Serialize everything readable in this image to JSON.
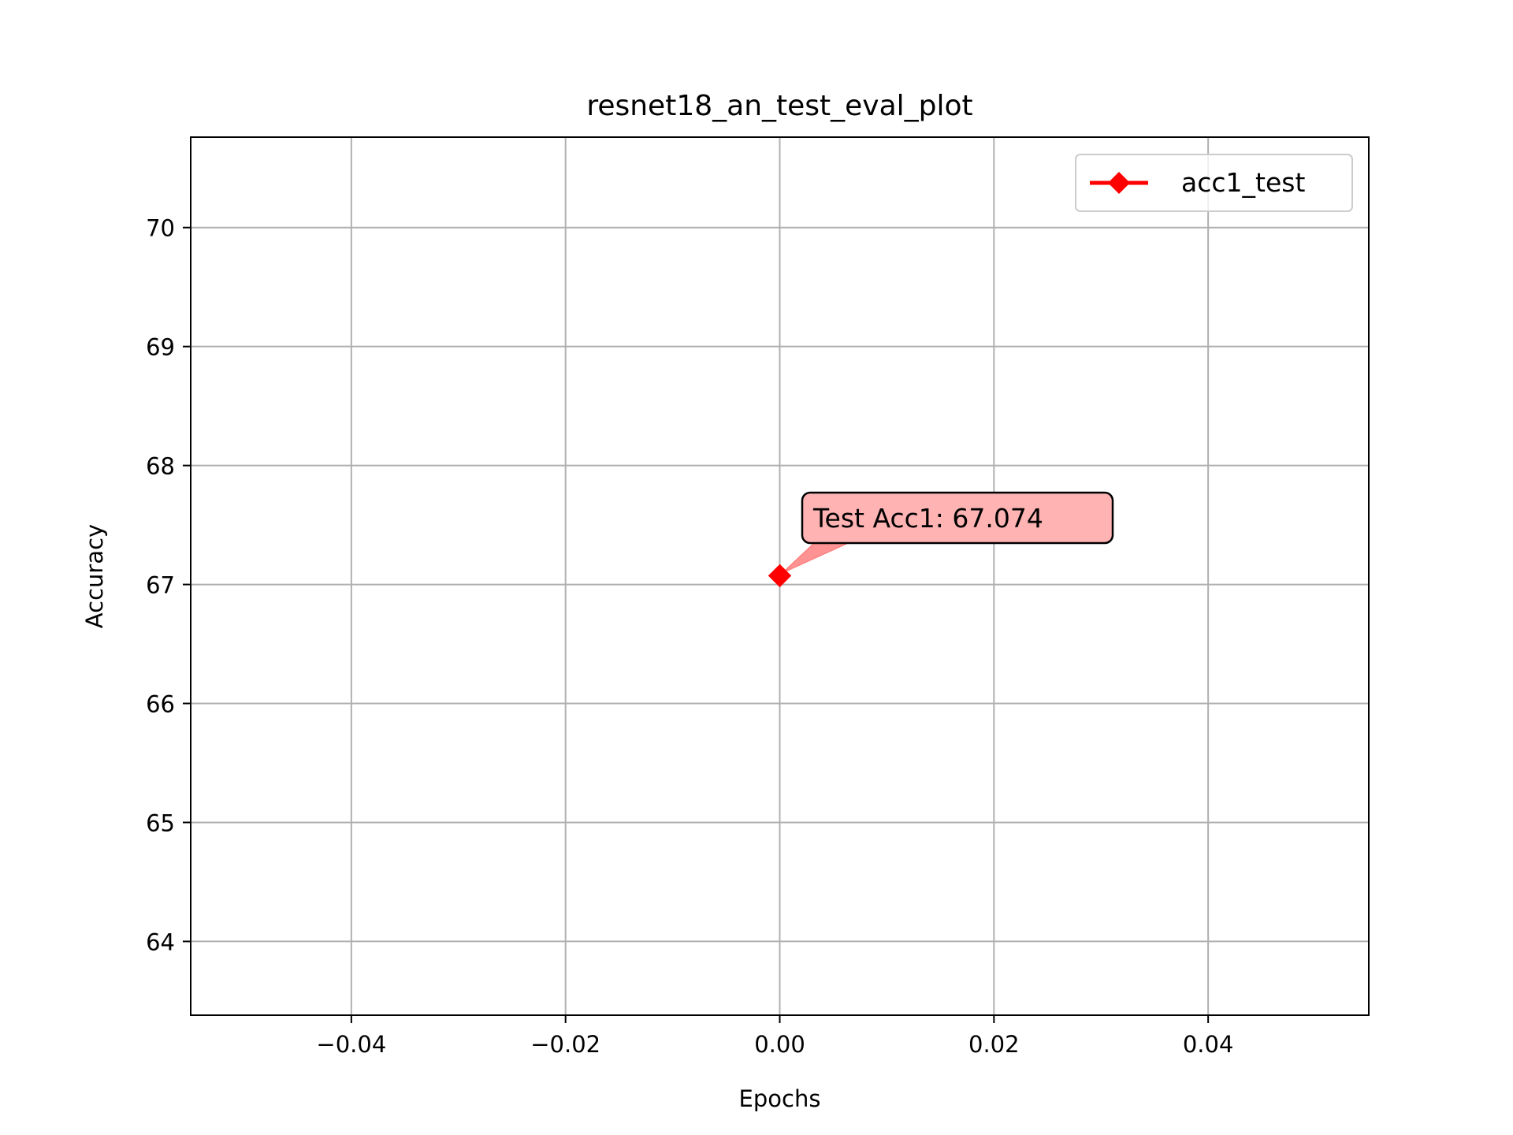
{
  "chart_data": {
    "type": "line",
    "title": "resnet18_an_test_eval_plot",
    "xlabel": "Epochs",
    "ylabel": "Accuracy",
    "xlim": [
      -0.055,
      0.055
    ],
    "ylim": [
      63.38,
      70.76
    ],
    "grid": true,
    "legend_position": "top-right",
    "x_ticks": [
      -0.04,
      -0.02,
      0.0,
      0.02,
      0.04
    ],
    "x_tick_labels": [
      "−0.04",
      "−0.02",
      "0.00",
      "0.02",
      "0.04"
    ],
    "y_ticks": [
      64,
      65,
      66,
      67,
      68,
      69,
      70
    ],
    "y_tick_labels": [
      "64",
      "65",
      "66",
      "67",
      "68",
      "69",
      "70"
    ],
    "series": [
      {
        "name": "acc1_test",
        "color": "#ff0000",
        "marker": "diamond",
        "x": [
          0.0
        ],
        "y": [
          67.074
        ]
      }
    ],
    "annotations": [
      {
        "text": "Test Acc1: 67.074",
        "x": 0.0,
        "y": 67.074,
        "box_color": "#ffb3b3",
        "arrow_color": "#ff8080"
      }
    ]
  }
}
